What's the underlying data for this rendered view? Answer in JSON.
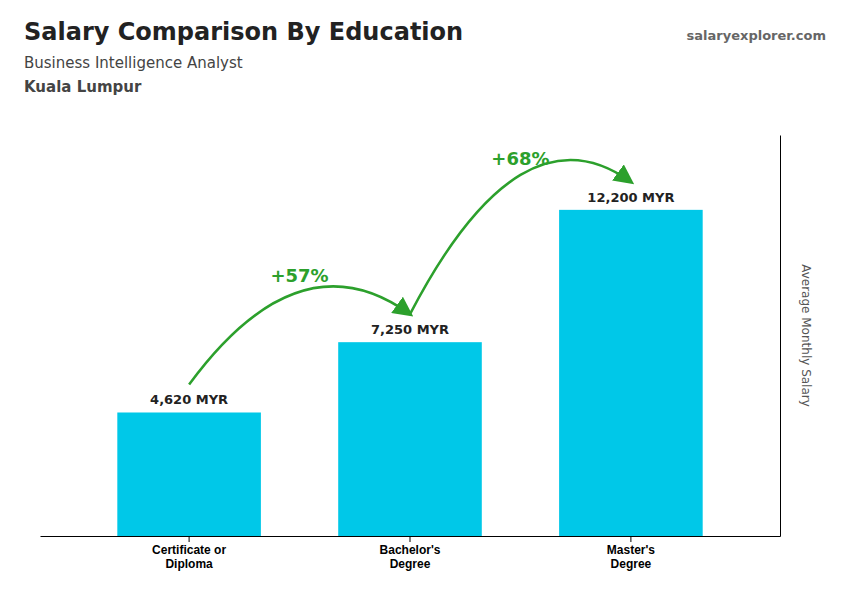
{
  "chart_data": {
    "type": "bar",
    "title": "Salary Comparison By Education",
    "subtitle": "Business Intelligence Analyst",
    "location": "Kuala Lumpur",
    "source": "salaryexplorer.com",
    "ylabel": "Average Monthly Salary",
    "categories": [
      "Certificate or\nDiploma",
      "Bachelor's\nDegree",
      "Master's\nDegree"
    ],
    "values": [
      4620,
      7250,
      12200
    ],
    "value_labels": [
      "4,620 MYR",
      "7,250 MYR",
      "12,200 MYR"
    ],
    "data_labels": true,
    "annotations": [
      "+57%",
      "+68%"
    ],
    "color": "#00c8e8",
    "ylim": [
      0,
      15000
    ],
    "tick_labels": "x",
    "grid": false
  }
}
